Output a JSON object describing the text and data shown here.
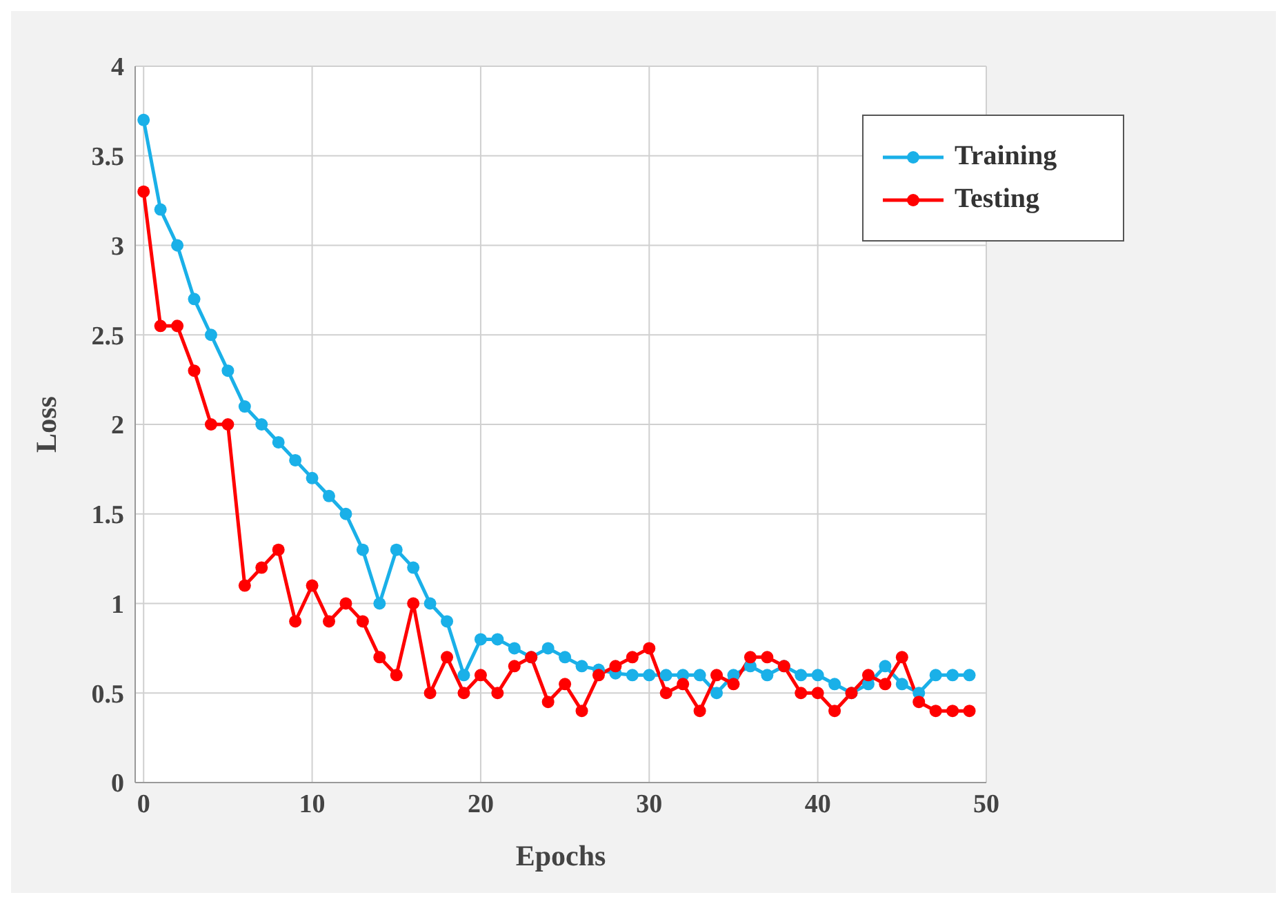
{
  "chart_data": {
    "type": "line",
    "xlabel": "Epochs",
    "ylabel": "Loss",
    "x": [
      0,
      1,
      2,
      3,
      4,
      5,
      6,
      7,
      8,
      9,
      10,
      11,
      12,
      13,
      14,
      15,
      16,
      17,
      18,
      19,
      20,
      21,
      22,
      23,
      24,
      25,
      26,
      27,
      28,
      29,
      30,
      31,
      32,
      33,
      34,
      35,
      36,
      37,
      38,
      39,
      40,
      41,
      42,
      43,
      44,
      45,
      46,
      47,
      48,
      49
    ],
    "series": [
      {
        "name": "Training",
        "color": "#1ab0e8",
        "values": [
          3.7,
          3.2,
          3.0,
          2.7,
          2.5,
          2.3,
          2.1,
          2.0,
          1.9,
          1.8,
          1.7,
          1.6,
          1.5,
          1.3,
          1.0,
          1.3,
          1.2,
          1.0,
          0.9,
          0.6,
          0.8,
          0.8,
          0.75,
          0.7,
          0.75,
          0.7,
          0.65,
          0.63,
          0.61,
          0.6,
          0.6,
          0.6,
          0.6,
          0.6,
          0.5,
          0.6,
          0.65,
          0.6,
          0.65,
          0.6,
          0.6,
          0.55,
          0.5,
          0.55,
          0.65,
          0.55,
          0.5,
          0.6,
          0.6,
          0.6
        ]
      },
      {
        "name": "Testing",
        "color": "#ff0000",
        "values": [
          3.3,
          2.55,
          2.55,
          2.3,
          2.0,
          2.0,
          1.1,
          1.2,
          1.3,
          0.9,
          1.1,
          0.9,
          1.0,
          0.9,
          0.7,
          0.6,
          1.0,
          0.5,
          0.7,
          0.5,
          0.6,
          0.5,
          0.65,
          0.7,
          0.45,
          0.55,
          0.4,
          0.6,
          0.65,
          0.7,
          0.75,
          0.5,
          0.55,
          0.4,
          0.6,
          0.55,
          0.7,
          0.7,
          0.65,
          0.5,
          0.5,
          0.4,
          0.5,
          0.6,
          0.55,
          0.7,
          0.45,
          0.4,
          0.4,
          0.4
        ]
      }
    ],
    "xlim": [
      -0.5,
      50
    ],
    "xticks": [
      0,
      10,
      20,
      30,
      40,
      50
    ],
    "ylim": [
      0,
      4
    ],
    "yticks": [
      0,
      0.5,
      1,
      1.5,
      2,
      2.5,
      3,
      3.5,
      4
    ],
    "grid": true,
    "legend": "top right",
    "marker": "circle",
    "line_style": "solid"
  }
}
